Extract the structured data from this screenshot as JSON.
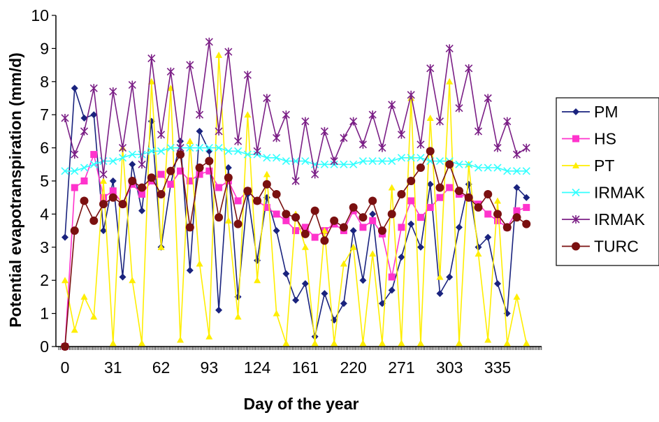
{
  "chart_data": {
    "type": "line",
    "xlabel": "Day of the year",
    "ylabel": "Potential evapotranspiration (mm/d)",
    "x_tick_labels": [
      "0",
      "31",
      "62",
      "93",
      "124",
      "161",
      "220",
      "271",
      "303",
      "335"
    ],
    "y_tick_labels": [
      "0",
      "1",
      "2",
      "3",
      "4",
      "5",
      "6",
      "7",
      "8",
      "9",
      "10"
    ],
    "ylim": [
      0,
      10
    ],
    "xlim": [
      0,
      11
    ],
    "grid": false,
    "legend_position": "right",
    "note": "Time axis is categorical; values approximated at weekly resolution, x = position in tick units (0 = first tick, 9 = last tick).",
    "series": [
      {
        "name": "PM",
        "color": "#1a237e",
        "marker": "diamond",
        "x": [
          0,
          0.2,
          0.4,
          0.6,
          0.8,
          1,
          1.2,
          1.4,
          1.6,
          1.8,
          2,
          2.2,
          2.4,
          2.6,
          2.8,
          3,
          3.2,
          3.4,
          3.6,
          3.8,
          4,
          4.2,
          4.4,
          4.6,
          4.8,
          5,
          5.2,
          5.4,
          5.6,
          5.8,
          6,
          6.2,
          6.4,
          6.6,
          6.8,
          7,
          7.2,
          7.4,
          7.6,
          7.8,
          8,
          8.2,
          8.4,
          8.6,
          8.8,
          9,
          9.2,
          9.4,
          9.6
        ],
        "y": [
          3.3,
          7.8,
          6.9,
          7.0,
          3.5,
          5.0,
          2.1,
          5.5,
          4.1,
          6.8,
          3.0,
          4.9,
          6.2,
          2.3,
          6.5,
          5.9,
          1.1,
          5.4,
          1.5,
          4.6,
          2.6,
          4.5,
          3.5,
          2.2,
          1.4,
          1.9,
          0.3,
          1.6,
          0.8,
          1.3,
          3.5,
          2.0,
          4.0,
          1.3,
          1.7,
          2.7,
          3.7,
          3.0,
          4.9,
          1.6,
          2.1,
          3.6,
          4.9,
          3.0,
          3.3,
          1.9,
          1.0,
          4.8,
          4.5
        ]
      },
      {
        "name": "HS",
        "color": "#ff33cc",
        "marker": "square",
        "x": [
          0,
          0.2,
          0.4,
          0.6,
          0.8,
          1,
          1.2,
          1.4,
          1.6,
          1.8,
          2,
          2.2,
          2.4,
          2.6,
          2.8,
          3,
          3.2,
          3.4,
          3.6,
          3.8,
          4,
          4.2,
          4.4,
          4.6,
          4.8,
          5,
          5.2,
          5.4,
          5.6,
          5.8,
          6,
          6.2,
          6.4,
          6.6,
          6.8,
          7,
          7.2,
          7.4,
          7.6,
          7.8,
          8,
          8.2,
          8.4,
          8.6,
          8.8,
          9,
          9.2,
          9.4,
          9.6
        ],
        "y": [
          0.0,
          4.8,
          5.0,
          5.8,
          4.5,
          4.7,
          4.3,
          4.9,
          4.6,
          5.0,
          5.2,
          4.9,
          5.3,
          5.0,
          5.2,
          5.3,
          4.8,
          5.0,
          4.4,
          4.7,
          4.4,
          4.2,
          4.0,
          3.8,
          3.5,
          3.6,
          3.3,
          3.5,
          3.7,
          3.5,
          4.1,
          3.6,
          3.8,
          3.4,
          2.1,
          3.6,
          4.4,
          3.9,
          4.2,
          4.5,
          4.8,
          4.6,
          4.5,
          4.3,
          4.0,
          3.8,
          3.6,
          4.1,
          4.2
        ]
      },
      {
        "name": "PT",
        "color": "#ffee00",
        "marker": "triangle",
        "x": [
          0,
          0.2,
          0.4,
          0.6,
          0.8,
          1,
          1.2,
          1.4,
          1.6,
          1.8,
          2,
          2.2,
          2.4,
          2.6,
          2.8,
          3,
          3.2,
          3.4,
          3.6,
          3.8,
          4,
          4.2,
          4.4,
          4.6,
          4.8,
          5,
          5.2,
          5.4,
          5.6,
          5.8,
          6,
          6.2,
          6.4,
          6.6,
          6.8,
          7,
          7.2,
          7.4,
          7.6,
          7.8,
          8,
          8.2,
          8.4,
          8.6,
          8.8,
          9,
          9.2,
          9.4,
          9.6
        ],
        "y": [
          2.0,
          0.5,
          1.5,
          0.9,
          5.0,
          0.1,
          6.0,
          2.0,
          0.1,
          8.0,
          3.0,
          7.8,
          0.2,
          6.2,
          2.5,
          0.3,
          8.8,
          3.8,
          0.9,
          7.0,
          2.0,
          5.2,
          1.0,
          0.1,
          4.0,
          3.0,
          0.1,
          3.5,
          0.1,
          2.5,
          3.0,
          0.1,
          2.8,
          0.1,
          4.8,
          0.1,
          7.5,
          0.1,
          6.9,
          2.1,
          8.0,
          0.1,
          5.5,
          2.8,
          0.2,
          4.4,
          0.1,
          1.5,
          0.1
        ]
      },
      {
        "name": "IRMAK",
        "color": "#33ffff",
        "marker": "x",
        "x": [
          0,
          0.2,
          0.4,
          0.6,
          0.8,
          1,
          1.2,
          1.4,
          1.6,
          1.8,
          2,
          2.2,
          2.4,
          2.6,
          2.8,
          3,
          3.2,
          3.4,
          3.6,
          3.8,
          4,
          4.2,
          4.4,
          4.6,
          4.8,
          5,
          5.2,
          5.4,
          5.6,
          5.8,
          6,
          6.2,
          6.4,
          6.6,
          6.8,
          7,
          7.2,
          7.4,
          7.6,
          7.8,
          8,
          8.2,
          8.4,
          8.6,
          8.8,
          9,
          9.2,
          9.4,
          9.6
        ],
        "y": [
          5.3,
          5.3,
          5.4,
          5.5,
          5.6,
          5.6,
          5.7,
          5.8,
          5.8,
          5.9,
          5.9,
          6.0,
          6.0,
          6.0,
          6.0,
          6.0,
          6.0,
          5.9,
          5.9,
          5.8,
          5.8,
          5.7,
          5.7,
          5.6,
          5.6,
          5.6,
          5.5,
          5.5,
          5.5,
          5.5,
          5.5,
          5.6,
          5.6,
          5.6,
          5.6,
          5.7,
          5.7,
          5.7,
          5.6,
          5.6,
          5.6,
          5.5,
          5.5,
          5.4,
          5.4,
          5.4,
          5.3,
          5.3,
          5.3
        ]
      },
      {
        "name": "IRMAK",
        "color": "#7b1f86",
        "marker": "star",
        "x": [
          0,
          0.2,
          0.4,
          0.6,
          0.8,
          1,
          1.2,
          1.4,
          1.6,
          1.8,
          2,
          2.2,
          2.4,
          2.6,
          2.8,
          3,
          3.2,
          3.4,
          3.6,
          3.8,
          4,
          4.2,
          4.4,
          4.6,
          4.8,
          5,
          5.2,
          5.4,
          5.6,
          5.8,
          6,
          6.2,
          6.4,
          6.6,
          6.8,
          7,
          7.2,
          7.4,
          7.6,
          7.8,
          8,
          8.2,
          8.4,
          8.6,
          8.8,
          9,
          9.2,
          9.4,
          9.6
        ],
        "y": [
          6.9,
          5.8,
          6.5,
          7.8,
          5.2,
          7.7,
          6.0,
          7.9,
          5.5,
          8.7,
          6.4,
          8.3,
          6.0,
          8.5,
          7.0,
          9.2,
          6.5,
          8.9,
          6.2,
          8.2,
          5.9,
          7.5,
          6.3,
          7.0,
          5.0,
          6.8,
          5.2,
          6.5,
          5.6,
          6.3,
          6.8,
          6.1,
          7.0,
          6.0,
          7.3,
          6.4,
          7.6,
          6.1,
          8.4,
          6.8,
          9.0,
          7.2,
          8.4,
          6.5,
          7.5,
          6.0,
          6.8,
          5.8,
          6.0
        ]
      },
      {
        "name": "TURC",
        "color": "#7a1010",
        "marker": "circle",
        "x": [
          0,
          0.2,
          0.4,
          0.6,
          0.8,
          1,
          1.2,
          1.4,
          1.6,
          1.8,
          2,
          2.2,
          2.4,
          2.6,
          2.8,
          3,
          3.2,
          3.4,
          3.6,
          3.8,
          4,
          4.2,
          4.4,
          4.6,
          4.8,
          5,
          5.2,
          5.4,
          5.6,
          5.8,
          6,
          6.2,
          6.4,
          6.6,
          6.8,
          7,
          7.2,
          7.4,
          7.6,
          7.8,
          8,
          8.2,
          8.4,
          8.6,
          8.8,
          9,
          9.2,
          9.4,
          9.6
        ],
        "y": [
          0.0,
          3.5,
          4.4,
          3.8,
          4.3,
          4.5,
          4.3,
          5.0,
          4.8,
          5.1,
          4.6,
          5.3,
          5.8,
          3.6,
          5.4,
          5.6,
          3.9,
          5.1,
          3.7,
          4.7,
          4.4,
          4.9,
          4.6,
          4.0,
          3.9,
          3.4,
          4.1,
          3.2,
          3.8,
          3.6,
          4.2,
          3.9,
          4.4,
          3.5,
          4.0,
          4.6,
          5.0,
          5.4,
          5.9,
          4.8,
          5.5,
          4.7,
          4.5,
          4.2,
          4.6,
          4.0,
          3.6,
          3.9,
          3.7
        ]
      }
    ]
  }
}
